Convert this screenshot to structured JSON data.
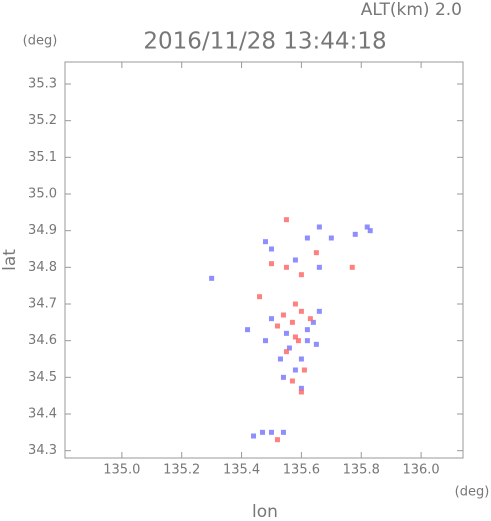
{
  "chart_data": {
    "type": "scatter",
    "title": "2016/11/28 13:44:18",
    "subtitle": "ALT(km) 2.0",
    "x_label": "lon",
    "y_label": "lat",
    "x_unit": "(deg)",
    "y_unit": "(deg)",
    "xlim": [
      134.81,
      136.14
    ],
    "ylim": [
      34.28,
      35.36
    ],
    "xticks": [
      {
        "value": 135.0,
        "label": "135.0"
      },
      {
        "value": 135.2,
        "label": "135.2"
      },
      {
        "value": 135.4,
        "label": "135.4"
      },
      {
        "value": 135.6,
        "label": "135.6"
      },
      {
        "value": 135.8,
        "label": "135.8"
      },
      {
        "value": 136.0,
        "label": "136.0"
      }
    ],
    "yticks": [
      {
        "value": 34.3,
        "label": "34.3"
      },
      {
        "value": 34.4,
        "label": "34.4"
      },
      {
        "value": 34.5,
        "label": "34.5"
      },
      {
        "value": 34.6,
        "label": "34.6"
      },
      {
        "value": 34.7,
        "label": "34.7"
      },
      {
        "value": 34.8,
        "label": "34.8"
      },
      {
        "value": 34.9,
        "label": "34.9"
      },
      {
        "value": 35.0,
        "label": "35.0"
      },
      {
        "value": 35.1,
        "label": "35.1"
      },
      {
        "value": 35.2,
        "label": "35.2"
      },
      {
        "value": 35.3,
        "label": "35.3"
      }
    ],
    "grid": false,
    "series": [
      {
        "color": "#7a7aff",
        "x": [
          135.3,
          135.48,
          135.5,
          135.62,
          135.66,
          135.7,
          135.78,
          135.82,
          135.83,
          135.58,
          135.66,
          135.42,
          135.5,
          135.55,
          135.62,
          135.64,
          135.66,
          135.6,
          135.58,
          135.53,
          135.56,
          135.62,
          135.54,
          135.44,
          135.47,
          135.5,
          135.54,
          135.48,
          135.65,
          135.6
        ],
        "values": [
          34.77,
          34.87,
          34.85,
          34.88,
          34.91,
          34.88,
          34.89,
          34.91,
          34.9,
          34.82,
          34.8,
          34.63,
          34.66,
          34.62,
          34.6,
          34.65,
          34.68,
          34.55,
          34.52,
          34.55,
          34.58,
          34.63,
          34.5,
          34.34,
          34.35,
          34.35,
          34.35,
          34.6,
          34.59,
          34.47
        ]
      },
      {
        "color": "#ff6a6a",
        "x": [
          135.55,
          135.5,
          135.55,
          135.6,
          135.65,
          135.77,
          135.58,
          135.6,
          135.57,
          135.52,
          135.63,
          135.59,
          135.55,
          135.61,
          135.57,
          135.6,
          135.46,
          135.52,
          135.58,
          135.54
        ],
        "values": [
          34.93,
          34.81,
          34.8,
          34.78,
          34.84,
          34.8,
          34.7,
          34.68,
          34.65,
          34.64,
          34.66,
          34.6,
          34.57,
          34.52,
          34.49,
          34.46,
          34.72,
          34.33,
          34.61,
          34.67
        ]
      }
    ]
  }
}
